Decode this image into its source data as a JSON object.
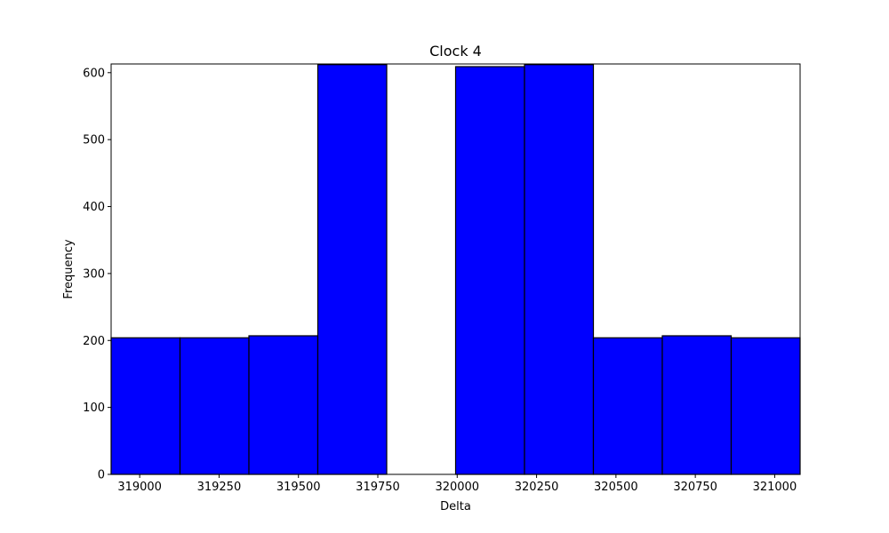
{
  "chart_data": {
    "type": "bar",
    "title": "Clock 4",
    "xlabel": "Delta",
    "ylabel": "Frequency",
    "bar_color": "#0000ff",
    "edge_color": "#000000",
    "xlim": [
      318910,
      321080
    ],
    "ylim": [
      0,
      613
    ],
    "grid": false,
    "bins": [
      {
        "start": 318910,
        "end": 319127,
        "value": 204
      },
      {
        "start": 319127,
        "end": 319344,
        "value": 204
      },
      {
        "start": 319344,
        "end": 319561,
        "value": 207
      },
      {
        "start": 319561,
        "end": 319778,
        "value": 612
      },
      {
        "start": 319778,
        "end": 319995,
        "value": 0
      },
      {
        "start": 319995,
        "end": 320212,
        "value": 609
      },
      {
        "start": 320212,
        "end": 320429,
        "value": 612
      },
      {
        "start": 320429,
        "end": 320646,
        "value": 204
      },
      {
        "start": 320646,
        "end": 320863,
        "value": 207
      },
      {
        "start": 320863,
        "end": 321080,
        "value": 204
      }
    ],
    "xticks": [
      {
        "value": 319000,
        "label": "319000"
      },
      {
        "value": 319250,
        "label": "319250"
      },
      {
        "value": 319500,
        "label": "319500"
      },
      {
        "value": 319750,
        "label": "319750"
      },
      {
        "value": 320000,
        "label": "320000"
      },
      {
        "value": 320250,
        "label": "320250"
      },
      {
        "value": 320500,
        "label": "320500"
      },
      {
        "value": 320750,
        "label": "320750"
      },
      {
        "value": 321000,
        "label": "321000"
      }
    ],
    "yticks": [
      {
        "value": 0,
        "label": "0"
      },
      {
        "value": 100,
        "label": "100"
      },
      {
        "value": 200,
        "label": "200"
      },
      {
        "value": 300,
        "label": "300"
      },
      {
        "value": 400,
        "label": "400"
      },
      {
        "value": 500,
        "label": "500"
      },
      {
        "value": 600,
        "label": "600"
      }
    ]
  }
}
